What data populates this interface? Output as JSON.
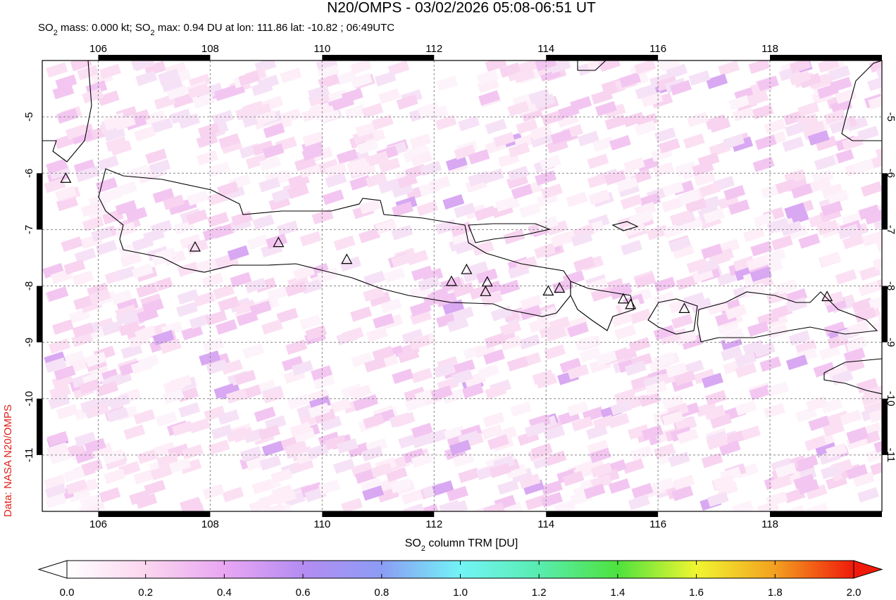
{
  "map": {
    "title": "N20/OMPS - 03/02/2026 05:08-06:51 UT",
    "subtitle": [
      "SO",
      "2",
      " mass: 0.000 kt; SO",
      "2",
      " max: 0.94 DU at lon: 111.86 lat: -10.82 ; 06:49UTC"
    ],
    "credit": "Data: NASA N20/OMPS",
    "xlim": [
      105,
      120
    ],
    "ylim": [
      -4,
      -12
    ],
    "xticks": [
      106,
      108,
      110,
      112,
      114,
      116,
      118
    ],
    "yticks": [
      -5,
      -6,
      -7,
      -8,
      -9,
      -10,
      -11
    ],
    "grid": true,
    "volcanoes": {
      "lon": [
        105.42,
        107.73,
        109.22,
        110.44,
        112.31,
        112.58,
        112.95,
        112.92,
        114.04,
        114.24,
        115.38,
        115.51,
        116.47,
        119.02
      ],
      "lat": [
        -6.1,
        -7.32,
        -7.24,
        -7.54,
        -7.93,
        -7.72,
        -7.94,
        -8.11,
        -8.1,
        -8.05,
        -8.24,
        -8.34,
        -8.41,
        -8.2
      ]
    },
    "colorbar": {
      "label": [
        "SO",
        "2",
        " column TRM [DU]"
      ],
      "range": [
        0,
        2
      ],
      "ticks": [
        {
          "value": 0,
          "label": "0.0"
        },
        0.2,
        0.4,
        0.6,
        0.8,
        {
          "value": 1,
          "label": "1.0"
        },
        1.2,
        1.4,
        1.6,
        1.8,
        {
          "value": 2,
          "label": "2.0"
        }
      ],
      "colors": [
        "#ffffff",
        "#fbd6ef",
        "#e9a6f3",
        "#b48cf2",
        "#8c9cf5",
        "#72f4f6",
        "#58ecb0",
        "#4ee23e",
        "#f0f630",
        "#f3a020",
        "#f01a0a"
      ]
    }
  }
}
